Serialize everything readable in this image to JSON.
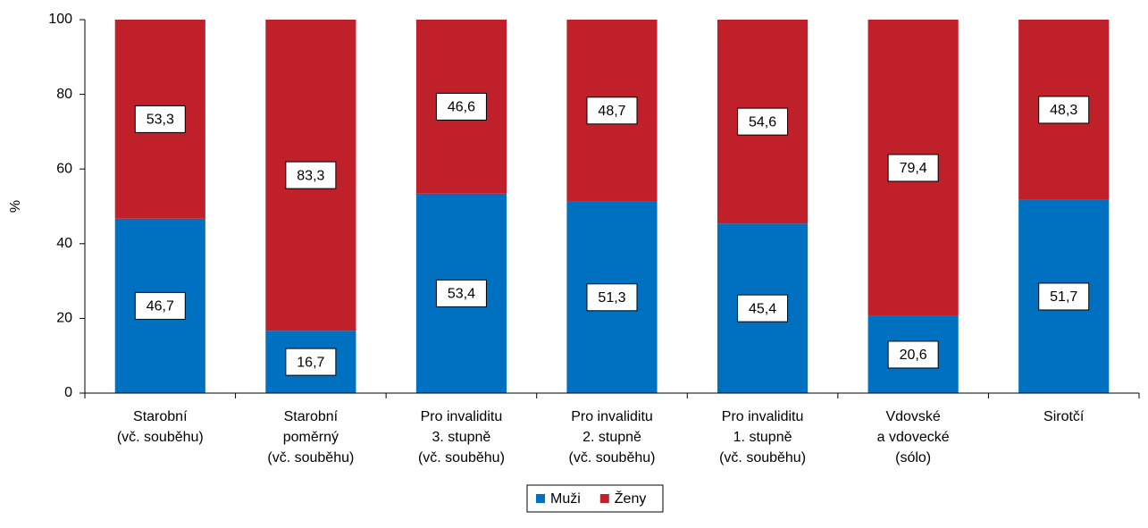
{
  "chart_data": {
    "type": "stacked_bar",
    "ylabel": "%",
    "categories": [
      [
        "Starobní",
        "(vč. souběhu)"
      ],
      [
        "Starobní",
        "poměrný",
        "(vč. souběhu)"
      ],
      [
        "Pro invaliditu",
        "3. stupně",
        "(vč. souběhu)"
      ],
      [
        "Pro invaliditu",
        "2. stupně",
        "(vč. souběhu)"
      ],
      [
        "Pro invaliditu",
        "1. stupně",
        "(vč. souběhu)"
      ],
      [
        "Vdovské",
        "a vdovecké",
        "(sólo)"
      ],
      [
        "Sirotčí"
      ]
    ],
    "series": [
      {
        "name": "Muži",
        "color": "#0070c0",
        "values": [
          46.7,
          16.7,
          53.4,
          51.3,
          45.4,
          20.6,
          51.7
        ],
        "value_labels": [
          "46,7",
          "16,7",
          "53,4",
          "51,3",
          "45,4",
          "20,6",
          "51,7"
        ]
      },
      {
        "name": "Ženy",
        "color": "#c0202a",
        "values": [
          53.3,
          83.3,
          46.6,
          48.7,
          54.6,
          79.4,
          48.3
        ],
        "value_labels": [
          "53,3",
          "83,3",
          "46,6",
          "48,7",
          "54,6",
          "79,4",
          "48,3"
        ]
      }
    ],
    "ylim": [
      0,
      100
    ],
    "yticks": [
      0,
      20,
      40,
      60,
      80,
      100
    ],
    "grid": false,
    "legend": "bottom"
  }
}
